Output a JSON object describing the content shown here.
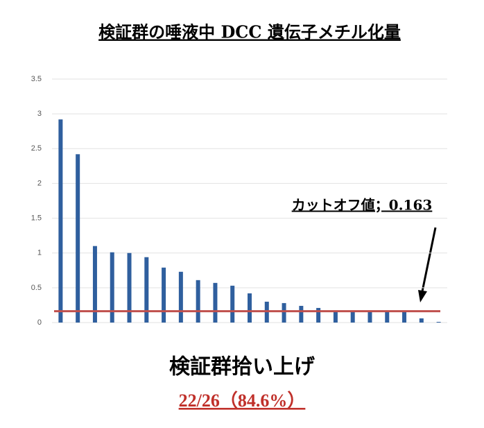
{
  "chart_data": {
    "type": "bar",
    "title": "検証群の唾液中 DCC 遺伝子メチル化量",
    "categories": [
      null,
      null,
      null,
      null,
      null,
      null,
      null,
      null,
      null,
      null,
      null,
      null,
      null,
      null,
      null,
      null,
      null,
      null,
      null,
      null,
      null,
      null,
      null
    ],
    "values": [
      2.92,
      2.42,
      1.1,
      1.01,
      1.0,
      0.94,
      0.79,
      0.73,
      0.61,
      0.57,
      0.53,
      0.42,
      0.3,
      0.28,
      0.24,
      0.21,
      0.17,
      0.17,
      0.17,
      0.17,
      0.16,
      0.06,
      0.01
    ],
    "color": "#2f5f9e",
    "ylim": [
      0,
      3.5
    ],
    "yticks": [
      0,
      0.5,
      1,
      1.5,
      2,
      2.5,
      3,
      3.5
    ],
    "grid": true,
    "cutoff": {
      "value": 0.163,
      "label": "カットオフ値；0.163",
      "color": "#c0504d"
    },
    "footer": {
      "line1": "検証群拾い上げ",
      "line2": "22/26（84.6%）"
    }
  }
}
